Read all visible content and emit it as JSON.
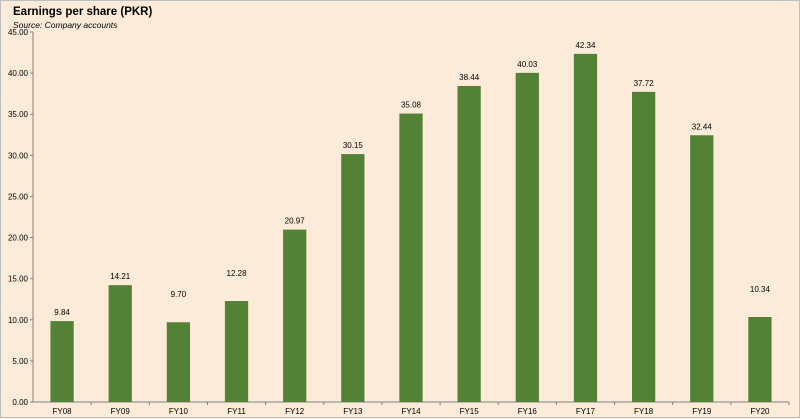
{
  "chart_data": {
    "type": "bar",
    "title": "Earnings per share (PKR)",
    "subtitle": "Source: Company accounts",
    "categories": [
      "FY08",
      "FY09",
      "FY10",
      "FY11",
      "FY12",
      "FY13",
      "FY14",
      "FY15",
      "FY16",
      "FY17",
      "FY18",
      "FY19",
      "FY20"
    ],
    "values": [
      9.84,
      14.21,
      9.7,
      12.28,
      20.97,
      30.15,
      35.08,
      38.44,
      40.03,
      42.34,
      37.72,
      32.44,
      10.34
    ],
    "data_labels": [
      "9.84",
      "14.21",
      "9.70",
      "12.28",
      "20.97",
      "30.15",
      "35.08",
      "38.44",
      "40.03",
      "42.34",
      "37.72",
      "32.44",
      "10.34"
    ],
    "ylim": [
      0,
      45
    ],
    "yticks": [
      "0.00",
      "5.00",
      "10.00",
      "15.00",
      "20.00",
      "25.00",
      "30.00",
      "35.00",
      "40.00",
      "45.00"
    ],
    "xlabel": "",
    "ylabel": "",
    "grid": false,
    "legend": "none",
    "bar_color": "#538135",
    "background_color": "#fdebd9"
  }
}
